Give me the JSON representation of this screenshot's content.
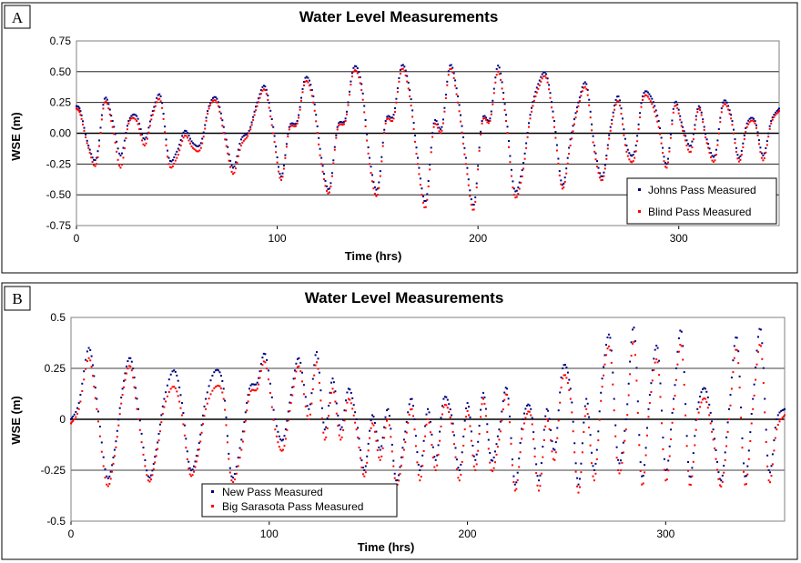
{
  "chart_data": [
    {
      "type": "scatter",
      "panel": "A",
      "title": "Water Level Measurements",
      "xlabel": "Time (hrs)",
      "ylabel": "WSE (m)",
      "xlim": [
        0,
        350
      ],
      "ylim": [
        -0.75,
        0.75
      ],
      "xticks": [
        0,
        100,
        200,
        300
      ],
      "xtick_labels": [
        "0",
        "100",
        "200",
        "300"
      ],
      "yticks": [
        0.75,
        0.5,
        0.25,
        0.0,
        -0.25,
        -0.5,
        -0.75
      ],
      "ytick_labels": [
        "0.75",
        "0.50",
        "0.25",
        "0.00",
        "-0.25",
        "-0.50",
        "-0.75"
      ],
      "grid": "horizontal",
      "legend_position": "bottom-right",
      "series": [
        {
          "name": "Johns Pass Measured",
          "color": "#000080",
          "x": [
            0,
            2,
            6,
            10,
            14,
            18,
            22,
            26,
            30,
            34,
            38,
            42,
            46,
            50,
            54,
            58,
            62,
            66,
            70,
            74,
            78,
            82,
            86,
            90,
            94,
            98,
            102,
            106,
            110,
            114,
            118,
            122,
            126,
            130,
            134,
            138,
            142,
            146,
            150,
            154,
            158,
            162,
            166,
            170,
            174,
            178,
            182,
            186,
            190,
            194,
            198,
            202,
            206,
            210,
            214,
            218,
            222,
            226,
            230,
            234,
            238,
            242,
            246,
            250,
            254,
            258,
            262,
            266,
            270,
            274,
            278,
            282,
            286,
            290,
            294,
            298,
            302,
            306,
            310,
            314,
            318,
            322,
            326,
            330,
            334,
            338,
            342,
            346,
            350
          ],
          "y": [
            0.22,
            0.18,
            -0.1,
            -0.2,
            0.28,
            0.1,
            -0.18,
            0.1,
            0.14,
            -0.05,
            0.18,
            0.3,
            -0.2,
            -0.15,
            0.02,
            -0.08,
            -0.08,
            0.22,
            0.28,
            0.0,
            -0.28,
            -0.05,
            0.02,
            0.25,
            0.38,
            0.05,
            -0.35,
            0.05,
            0.1,
            0.45,
            0.3,
            -0.2,
            -0.45,
            0.05,
            0.12,
            0.53,
            0.4,
            -0.2,
            -0.45,
            0.1,
            0.15,
            0.55,
            0.35,
            -0.2,
            -0.55,
            0.08,
            0.05,
            0.55,
            0.3,
            -0.2,
            -0.58,
            0.1,
            0.12,
            0.55,
            0.15,
            -0.45,
            -0.3,
            0.15,
            0.4,
            0.48,
            0.1,
            -0.42,
            -0.05,
            0.25,
            0.4,
            -0.1,
            -0.35,
            0.05,
            0.3,
            -0.1,
            -0.15,
            0.3,
            0.3,
            0.1,
            -0.25,
            0.25,
            0.05,
            -0.1,
            0.22,
            -0.05,
            -0.18,
            0.25,
            0.15,
            -0.2,
            0.08,
            0.1,
            -0.18,
            0.1,
            0.2
          ]
        },
        {
          "name": "Blind Pass Measured",
          "color": "#ff0000",
          "x": [
            0,
            2,
            6,
            10,
            14,
            18,
            22,
            26,
            30,
            34,
            38,
            42,
            46,
            50,
            54,
            58,
            62,
            66,
            70,
            74,
            78,
            82,
            86,
            90,
            94,
            98,
            102,
            106,
            110,
            114,
            118,
            122,
            126,
            130,
            134,
            138,
            142,
            146,
            150,
            154,
            158,
            162,
            166,
            170,
            174,
            178,
            182,
            186,
            190,
            194,
            198,
            202,
            206,
            210,
            214,
            218,
            222,
            226,
            230,
            234,
            238,
            242,
            246,
            250,
            254,
            258,
            262,
            266,
            270,
            274,
            278,
            282,
            286,
            290,
            294,
            298,
            302,
            306,
            310,
            314,
            318,
            322,
            326,
            330,
            334,
            338,
            342,
            346,
            350
          ],
          "y": [
            0.2,
            0.15,
            -0.12,
            -0.25,
            0.25,
            0.05,
            -0.28,
            0.08,
            0.1,
            -0.1,
            0.15,
            0.26,
            -0.25,
            -0.2,
            -0.02,
            -0.12,
            -0.12,
            0.2,
            0.25,
            -0.05,
            -0.33,
            -0.1,
            0.0,
            0.22,
            0.35,
            0.0,
            -0.38,
            0.03,
            0.08,
            0.42,
            0.25,
            -0.25,
            -0.48,
            0.03,
            0.1,
            0.5,
            0.35,
            -0.25,
            -0.5,
            0.08,
            0.12,
            0.52,
            0.3,
            -0.25,
            -0.6,
            0.05,
            0.02,
            0.52,
            0.25,
            -0.25,
            -0.62,
            0.08,
            0.1,
            0.5,
            0.1,
            -0.5,
            -0.35,
            0.12,
            0.36,
            0.45,
            0.05,
            -0.45,
            -0.1,
            0.22,
            0.36,
            -0.15,
            -0.38,
            0.02,
            0.26,
            -0.15,
            -0.2,
            0.27,
            0.26,
            0.05,
            -0.28,
            0.22,
            0.02,
            -0.15,
            0.2,
            -0.08,
            -0.22,
            0.22,
            0.12,
            -0.23,
            0.05,
            0.08,
            -0.22,
            0.08,
            0.18
          ]
        }
      ]
    },
    {
      "type": "scatter",
      "panel": "B",
      "title": "Water Level Measurements",
      "xlabel": "Time (hrs)",
      "ylabel": "WSE (m)",
      "xlim": [
        0,
        360
      ],
      "ylim": [
        -0.5,
        0.5
      ],
      "xticks": [
        0,
        100,
        200,
        300
      ],
      "xtick_labels": [
        "0",
        "100",
        "200",
        "300"
      ],
      "yticks": [
        0.5,
        0.25,
        0,
        -0.25,
        -0.5
      ],
      "ytick_labels": [
        "0.5",
        "0.25",
        "0",
        "-0.25",
        "-0.5"
      ],
      "grid": "horizontal",
      "legend_position": "bottom-center",
      "series": [
        {
          "name": "New Pass Measured",
          "color": "#000080",
          "x": [
            0,
            4,
            9,
            13,
            18,
            22,
            26,
            30,
            34,
            39,
            43,
            47,
            52,
            56,
            60,
            64,
            68,
            73,
            77,
            81,
            86,
            90,
            94,
            98,
            103,
            107,
            111,
            115,
            120,
            124,
            128,
            132,
            136,
            140,
            144,
            148,
            152,
            156,
            160,
            164,
            168,
            172,
            176,
            180,
            184,
            188,
            192,
            196,
            200,
            204,
            208,
            212,
            216,
            220,
            224,
            228,
            232,
            236,
            240,
            244,
            248,
            252,
            256,
            260,
            264,
            268,
            272,
            276,
            280,
            284,
            288,
            292,
            296,
            300,
            304,
            308,
            312,
            316,
            320,
            324,
            328,
            332,
            336,
            340,
            344,
            348,
            352,
            356,
            360
          ],
          "y": [
            0.0,
            0.08,
            0.35,
            0.1,
            -0.28,
            -0.15,
            0.15,
            0.3,
            0.05,
            -0.28,
            -0.15,
            0.1,
            0.24,
            0.08,
            -0.24,
            -0.15,
            0.1,
            0.24,
            0.15,
            -0.28,
            -0.1,
            0.15,
            0.18,
            0.32,
            0.0,
            -0.1,
            0.12,
            0.3,
            0.05,
            0.33,
            -0.05,
            0.2,
            -0.05,
            0.15,
            0.0,
            -0.25,
            0.02,
            -0.15,
            0.05,
            -0.3,
            -0.1,
            0.1,
            -0.25,
            0.05,
            -0.2,
            0.1,
            0.02,
            -0.25,
            0.08,
            -0.2,
            0.13,
            -0.2,
            -0.05,
            0.15,
            -0.32,
            0.0,
            0.05,
            -0.3,
            0.05,
            -0.15,
            0.25,
            0.15,
            -0.32,
            0.1,
            -0.25,
            0.2,
            0.4,
            -0.2,
            0.0,
            0.45,
            -0.28,
            0.12,
            0.35,
            -0.25,
            0.1,
            0.43,
            -0.28,
            0.05,
            0.15,
            -0.05,
            -0.3,
            0.05,
            0.4,
            -0.28,
            0.1,
            0.44,
            -0.25,
            0.0,
            0.05
          ]
        },
        {
          "name": "Big Sarasota Pass Measured",
          "color": "#ff0000",
          "x": [
            0,
            4,
            9,
            13,
            18,
            22,
            26,
            30,
            34,
            39,
            43,
            47,
            52,
            56,
            60,
            64,
            68,
            73,
            77,
            81,
            86,
            90,
            94,
            98,
            103,
            107,
            111,
            115,
            120,
            124,
            128,
            132,
            136,
            140,
            144,
            148,
            152,
            156,
            160,
            164,
            168,
            172,
            176,
            180,
            184,
            188,
            192,
            196,
            200,
            204,
            208,
            212,
            216,
            220,
            224,
            228,
            232,
            236,
            240,
            244,
            248,
            252,
            256,
            260,
            264,
            268,
            272,
            276,
            280,
            284,
            288,
            292,
            296,
            300,
            304,
            308,
            312,
            316,
            320,
            324,
            328,
            332,
            336,
            340,
            344,
            348,
            352,
            356,
            360
          ],
          "y": [
            -0.02,
            0.05,
            0.3,
            0.05,
            -0.32,
            -0.18,
            0.12,
            0.26,
            0.0,
            -0.3,
            -0.18,
            0.06,
            0.16,
            0.02,
            -0.27,
            -0.18,
            0.05,
            0.16,
            0.1,
            -0.3,
            -0.15,
            0.12,
            0.15,
            0.28,
            -0.05,
            -0.15,
            0.08,
            0.26,
            0.0,
            0.28,
            -0.1,
            0.15,
            -0.1,
            0.1,
            -0.05,
            -0.28,
            -0.02,
            -0.2,
            0.0,
            -0.32,
            -0.15,
            0.05,
            -0.3,
            0.0,
            -0.25,
            0.06,
            -0.02,
            -0.3,
            0.04,
            -0.25,
            0.1,
            -0.25,
            -0.1,
            0.12,
            -0.35,
            -0.05,
            0.02,
            -0.35,
            0.0,
            -0.2,
            0.2,
            0.1,
            -0.36,
            0.05,
            -0.3,
            0.16,
            0.34,
            -0.25,
            -0.05,
            0.38,
            -0.32,
            0.08,
            0.28,
            -0.3,
            0.05,
            0.36,
            -0.32,
            0.0,
            0.1,
            -0.1,
            -0.33,
            0.0,
            0.34,
            -0.32,
            0.05,
            0.36,
            -0.3,
            -0.05,
            0.02
          ]
        }
      ]
    }
  ],
  "panels": [
    {
      "label": "A"
    },
    {
      "label": "B"
    }
  ]
}
